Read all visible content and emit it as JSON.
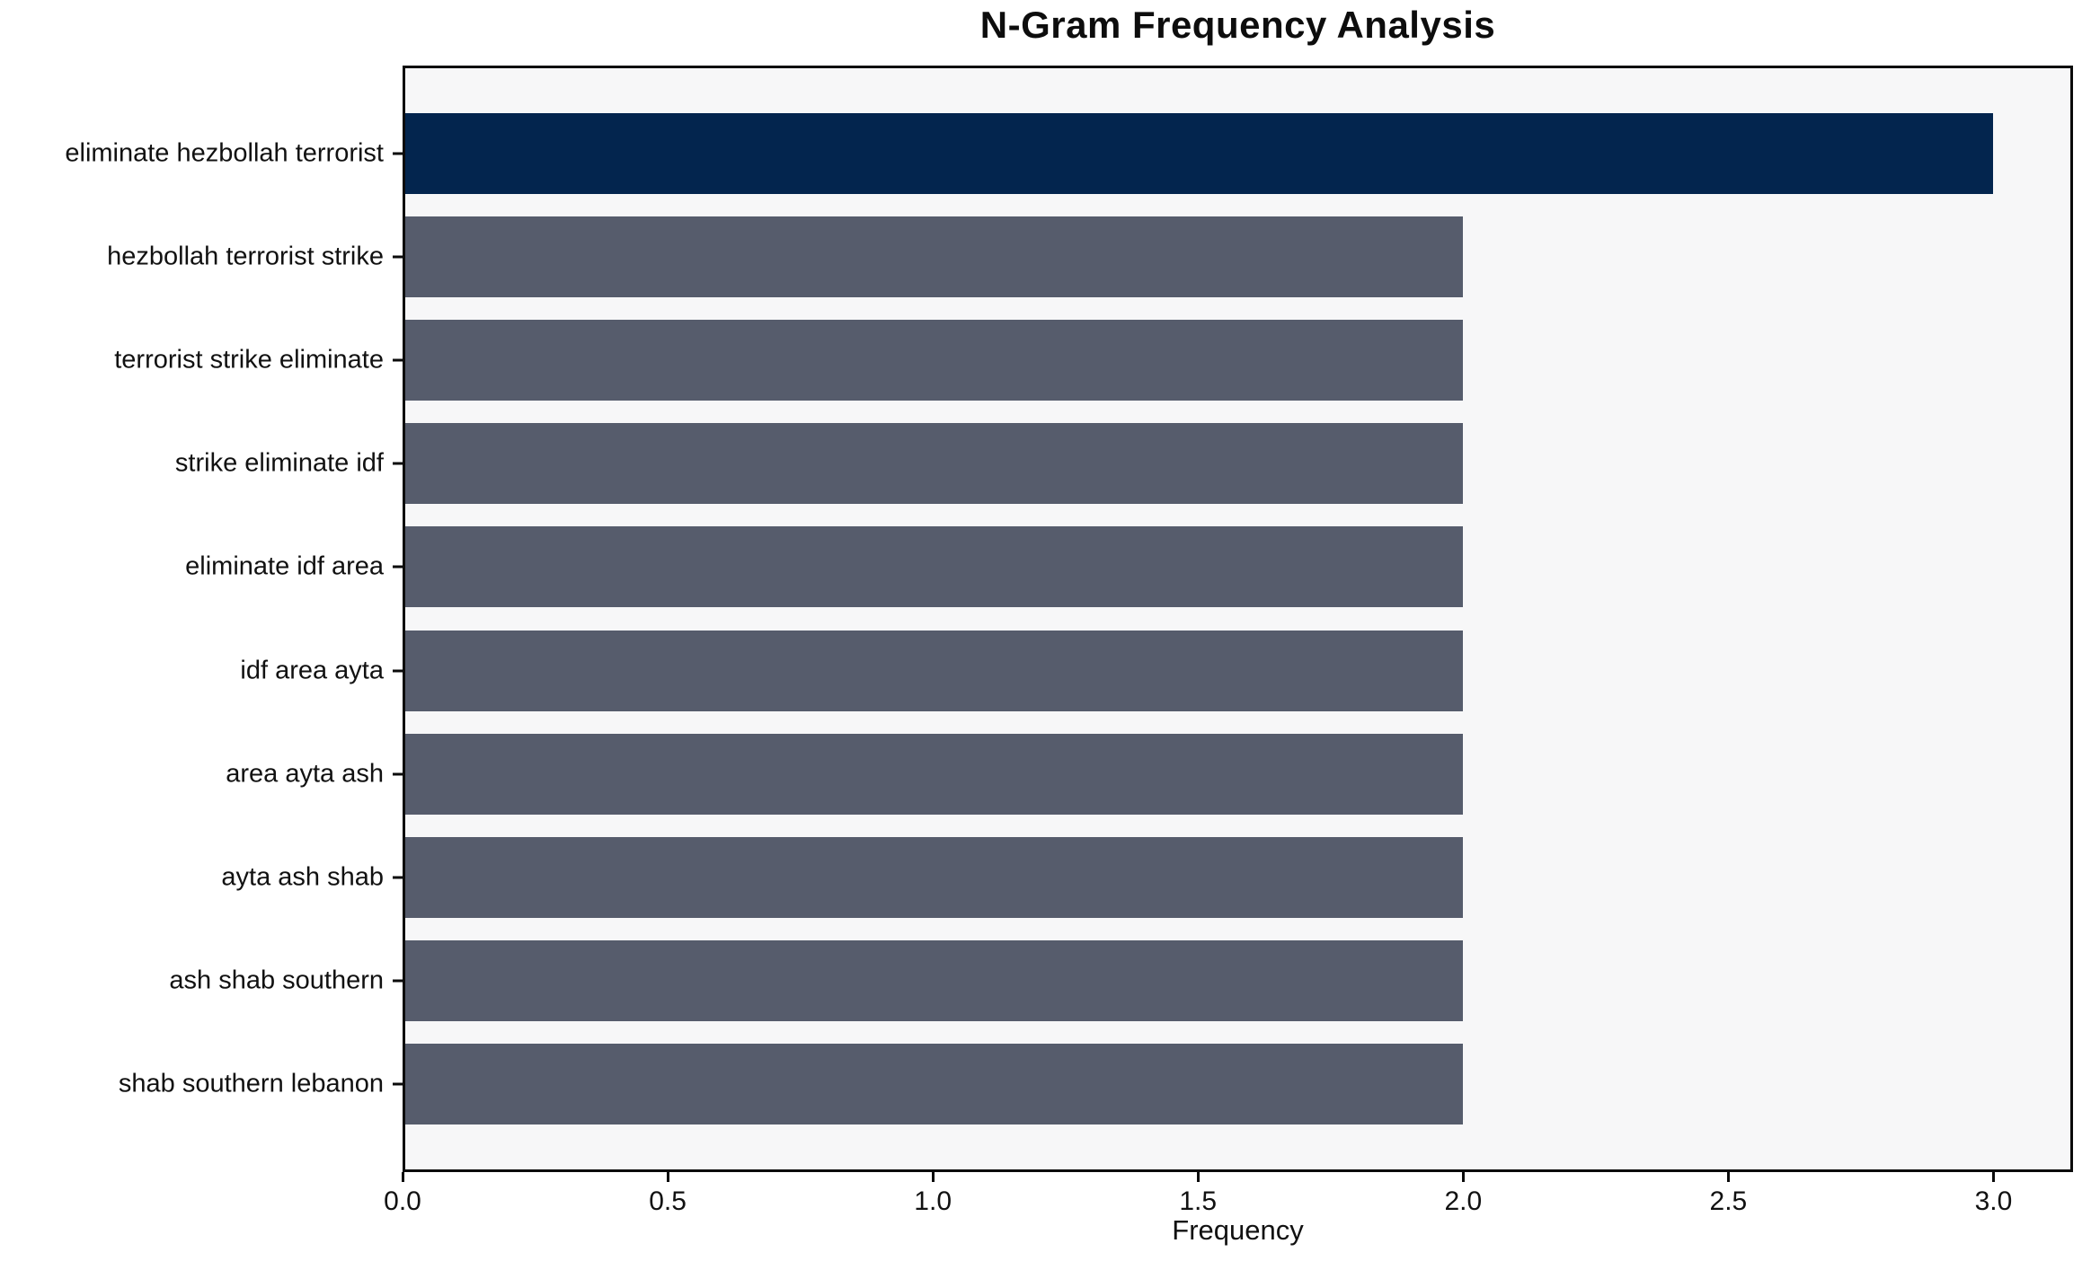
{
  "chart_data": {
    "type": "bar",
    "orientation": "horizontal",
    "title": "N-Gram Frequency Analysis",
    "xlabel": "Frequency",
    "ylabel": "",
    "categories": [
      "eliminate hezbollah terrorist",
      "hezbollah terrorist strike",
      "terrorist strike eliminate",
      "strike eliminate idf",
      "eliminate idf area",
      "idf area ayta",
      "area ayta ash",
      "ayta ash shab",
      "ash shab southern",
      "shab southern lebanon"
    ],
    "values": [
      3,
      2,
      2,
      2,
      2,
      2,
      2,
      2,
      2,
      2
    ],
    "xlim": [
      0,
      3.15
    ],
    "xticks": [
      "0.0",
      "0.5",
      "1.0",
      "1.5",
      "2.0",
      "2.5",
      "3.0"
    ],
    "xtick_values": [
      0,
      0.5,
      1.0,
      1.5,
      2.0,
      2.5,
      3.0
    ],
    "grid": false,
    "legend_position": "none",
    "colors": {
      "highlight_bar": "#03254e",
      "default_bar": "#565c6c",
      "plot_background": "#f7f7f8",
      "figure_background": "#ffffff",
      "axis": "#0b0b0b",
      "text": "#111111"
    },
    "bar_colors": [
      "#03254e",
      "#565c6c",
      "#565c6c",
      "#565c6c",
      "#565c6c",
      "#565c6c",
      "#565c6c",
      "#565c6c",
      "#565c6c",
      "#565c6c"
    ]
  }
}
